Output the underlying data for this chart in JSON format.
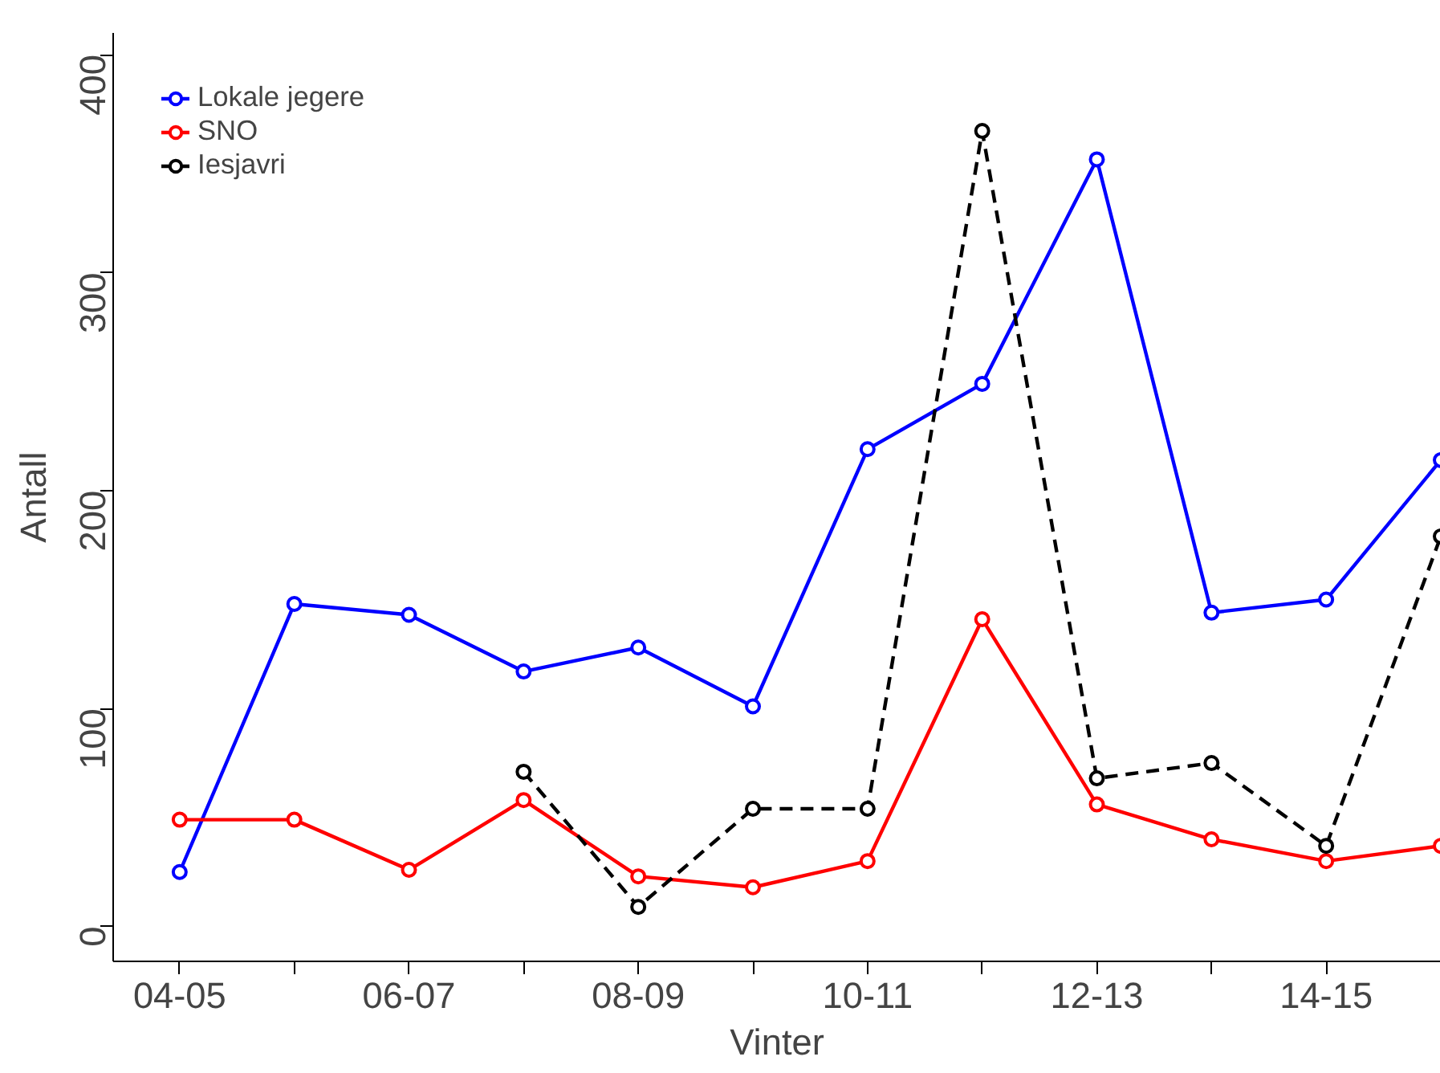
{
  "chart_data": {
    "type": "line",
    "xlabel": "Vinter",
    "ylabel": "Antall",
    "categories": [
      "04-05",
      null,
      "06-07",
      null,
      "08-09",
      null,
      "10-11",
      null,
      "12-13",
      null,
      "14-15",
      null
    ],
    "series": [
      {
        "name": "Lokale jegere",
        "color": "#0000ff",
        "line_style": "solid",
        "values": [
          25,
          148,
          143,
          117,
          128,
          101,
          219,
          249,
          352,
          144,
          150,
          214
        ]
      },
      {
        "name": "SNO",
        "color": "#ff0000",
        "line_style": "solid",
        "values": [
          49,
          49,
          26,
          58,
          23,
          18,
          30,
          141,
          56,
          40,
          30,
          37
        ]
      },
      {
        "name": "Iesjavri",
        "color": "#000000",
        "line_style": "dashed",
        "values": [
          null,
          null,
          null,
          71,
          9,
          54,
          54,
          365,
          68,
          75,
          37,
          179
        ]
      }
    ],
    "ylim": [
      -16,
      410
    ],
    "yticks": [
      0,
      100,
      200,
      300,
      400
    ],
    "marker": "circle",
    "grid": false,
    "legend": "top left"
  }
}
